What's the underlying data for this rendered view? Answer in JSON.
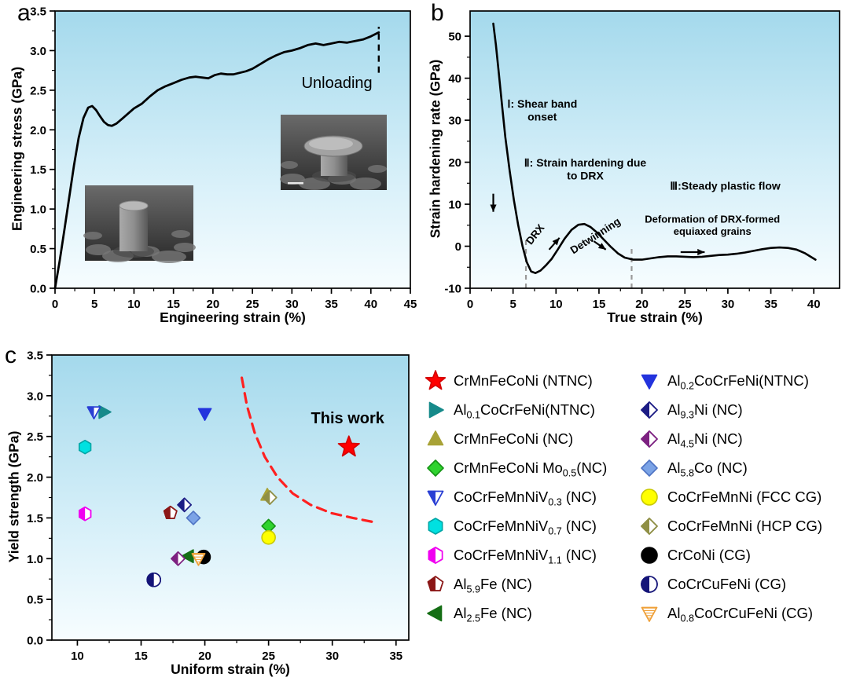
{
  "figure": {
    "panels": {
      "a": "a",
      "b": "b",
      "c": "c"
    }
  },
  "colors": {
    "plot_bg_top": "#a4d9ec",
    "plot_bg_mid": "#d3eef8",
    "plot_bg_bottom": "#f7fdff",
    "curve": "#000000",
    "this_work_red": "#ff0000",
    "boundary_red": "#ff2020",
    "guide_gray": "#999999"
  },
  "chart_data": [
    {
      "panel": "a",
      "type": "line",
      "xlabel": "Engineering strain (%)",
      "ylabel": "Engineering stress (GPa)",
      "xlim": [
        0,
        45
      ],
      "ylim": [
        0,
        3.5
      ],
      "xticks": [
        0,
        5,
        10,
        15,
        20,
        25,
        30,
        35,
        40,
        45
      ],
      "yticks": [
        0,
        0.5,
        1,
        1.5,
        2,
        2.5,
        3,
        3.5
      ],
      "ytick_decimals": 1,
      "series": [
        {
          "name": "engineering-stress-strain-curve",
          "color": "#000000",
          "width": 2.8,
          "x": [
            0,
            0.6,
            1.2,
            1.8,
            2.4,
            3.0,
            3.6,
            4.2,
            4.7,
            5.2,
            5.7,
            6.2,
            6.7,
            7.2,
            7.8,
            8.5,
            9.2,
            10,
            11,
            12,
            13,
            14,
            15,
            16,
            17,
            17.8,
            18.6,
            19.4,
            20.2,
            21,
            21.8,
            22.6,
            23.4,
            24.2,
            25,
            26,
            27,
            28,
            29,
            30,
            31,
            32,
            33,
            34,
            35,
            36,
            37,
            38,
            39,
            40,
            41
          ],
          "y": [
            0,
            0.35,
            0.75,
            1.15,
            1.55,
            1.9,
            2.15,
            2.28,
            2.3,
            2.25,
            2.17,
            2.1,
            2.06,
            2.05,
            2.08,
            2.14,
            2.2,
            2.27,
            2.33,
            2.42,
            2.5,
            2.55,
            2.59,
            2.63,
            2.66,
            2.67,
            2.66,
            2.65,
            2.69,
            2.71,
            2.7,
            2.7,
            2.72,
            2.74,
            2.77,
            2.83,
            2.89,
            2.94,
            2.98,
            3.0,
            3.03,
            3.07,
            3.09,
            3.07,
            3.09,
            3.11,
            3.1,
            3.12,
            3.14,
            3.18,
            3.23
          ]
        }
      ],
      "vlines": [
        {
          "name": "unloading-dashed-line",
          "x": 41,
          "y1": 2.72,
          "y2": 3.3,
          "color": "#000000",
          "dash": "8,6",
          "width": 2.4
        }
      ],
      "annotations": [
        {
          "text": "Unloading",
          "x": 35.7,
          "y": 2.53,
          "size": 20,
          "weight": 500,
          "color": "#000000"
        }
      ],
      "insets": [
        {
          "name": "sem-undeformed-micropillar"
        },
        {
          "name": "sem-deformed-micropillar"
        }
      ]
    },
    {
      "panel": "b",
      "type": "line",
      "xlabel": "True strain (%)",
      "ylabel": "Strain hardening rate (GPa)",
      "xlim": [
        0,
        43
      ],
      "ylim": [
        -10,
        56
      ],
      "xticks": [
        0,
        5,
        10,
        15,
        20,
        25,
        30,
        35,
        40
      ],
      "yticks": [
        -10,
        0,
        10,
        20,
        30,
        40,
        50
      ],
      "ytick_decimals": 0,
      "series": [
        {
          "name": "strain-hardening-rate-curve",
          "color": "#000000",
          "width": 2.6,
          "x": [
            2.7,
            3.0,
            3.3,
            3.7,
            4.1,
            4.6,
            5.1,
            5.6,
            6.1,
            6.6,
            7.1,
            7.6,
            8.2,
            8.8,
            9.5,
            10.2,
            11,
            11.8,
            12.6,
            13.3,
            14,
            14.8,
            15.6,
            16.4,
            17.2,
            18,
            19,
            20,
            21,
            22,
            23,
            24,
            25,
            26,
            27,
            28,
            29,
            30,
            31,
            32,
            33,
            34,
            35,
            36,
            37,
            38,
            39,
            40.2
          ],
          "y": [
            53,
            48,
            42,
            34,
            26,
            18,
            11,
            5,
            0,
            -3.8,
            -6,
            -6.4,
            -5.8,
            -4.6,
            -3,
            -0.8,
            1.8,
            3.9,
            5.1,
            5.3,
            4.6,
            3.2,
            1.5,
            -0.2,
            -1.7,
            -2.7,
            -3.2,
            -3.2,
            -2.9,
            -2.6,
            -2.4,
            -2.4,
            -2.5,
            -2.6,
            -2.5,
            -2.3,
            -2.1,
            -2.0,
            -1.8,
            -1.5,
            -1.1,
            -0.7,
            -0.4,
            -0.3,
            -0.4,
            -0.8,
            -1.7,
            -3.2
          ]
        }
      ],
      "vlines": [
        {
          "name": "stage-boundary-line-1",
          "x": 6.5,
          "y1": -10,
          "y2": 2.0,
          "color": "#999999",
          "dash": "6,5",
          "width": 2.2
        },
        {
          "name": "stage-boundary-line-2",
          "x": 18.8,
          "y1": -10,
          "y2": -0.5,
          "color": "#999999",
          "dash": "6,5",
          "width": 2.2
        }
      ],
      "annotations": [
        {
          "text": "Ⅰ: Shear band\nonset",
          "x": 8.4,
          "y": 33,
          "size": 14,
          "weight": 700
        },
        {
          "text": "Ⅱ: Strain hardening due\nto DRX",
          "x": 13.4,
          "y": 19,
          "size": 14,
          "weight": 700
        },
        {
          "text": "Ⅲ:Steady plastic flow",
          "x": 29.7,
          "y": 13.5,
          "size": 14,
          "weight": 700
        },
        {
          "text": "DRX",
          "x": 7.9,
          "y": 2.3,
          "size": 13.5,
          "weight": 700,
          "rotate": -52
        },
        {
          "text": "Detwinning",
          "x": 14.8,
          "y": 1.8,
          "size": 13.5,
          "weight": 700,
          "rotate": -33
        },
        {
          "text": "Deformation of DRX-formed\nequiaxed grains",
          "x": 28.2,
          "y": 5.6,
          "size": 13,
          "weight": 700
        }
      ],
      "arrows": [
        {
          "x1": 2.7,
          "y1": 12.5,
          "x2": 2.7,
          "y2": 8.2
        },
        {
          "x1": 9.2,
          "y1": -0.8,
          "x2": 10.4,
          "y2": 2.0
        },
        {
          "x1": 14.4,
          "y1": 1.2,
          "x2": 15.8,
          "y2": -0.8
        },
        {
          "x1": 24.5,
          "y1": -1.4,
          "x2": 27.3,
          "y2": -1.4
        }
      ]
    },
    {
      "panel": "c",
      "type": "scatter",
      "xlabel": "Uniform strain (%)",
      "ylabel": "Yield strength (GPa)",
      "xlim": [
        8,
        36
      ],
      "ylim": [
        0,
        3.5
      ],
      "xticks": [
        10,
        15,
        20,
        25,
        30,
        35
      ],
      "yticks": [
        0,
        0.5,
        1,
        1.5,
        2,
        2.5,
        3,
        3.5
      ],
      "ytick_decimals": 1,
      "boundary": {
        "color": "#ff2020",
        "dash": "12,8",
        "width": 3.2,
        "x": [
          22.9,
          23.3,
          23.9,
          24.7,
          25.7,
          26.9,
          28.3,
          29.9,
          31.6,
          33.2
        ],
        "y": [
          3.22,
          2.88,
          2.55,
          2.25,
          2.0,
          1.8,
          1.66,
          1.56,
          1.5,
          1.45
        ]
      },
      "annotations": [
        {
          "text": "This work",
          "x": 31.2,
          "y": 2.66,
          "size": 20,
          "weight": 700,
          "color": "#ff0000"
        }
      ],
      "series": [
        {
          "label": "CrMnFeCoNi (NTNC)",
          "marker": "star",
          "fill": "solid",
          "color": "#ff0000",
          "stroke": "#d40000",
          "x": 31.3,
          "y": 2.37,
          "column": 1
        },
        {
          "label": "Al_{0.1}CoCrFeNi(NTNC)",
          "marker": "tri-right",
          "fill": "solid",
          "color": "#168a8a",
          "x": 12.1,
          "y": 2.8,
          "column": 1
        },
        {
          "label": "CrMnFeCoNi (NC)",
          "marker": "tri-up",
          "fill": "solid",
          "color": "#a8a236",
          "x": 24.9,
          "y": 1.78,
          "column": 1
        },
        {
          "label": "CrMnFeCoNi Mo_{0.5}(NC)",
          "marker": "diamond",
          "fill": "solid",
          "color": "#2fd32f",
          "stroke": "#169416",
          "x": 25,
          "y": 1.4,
          "column": 1
        },
        {
          "label": "CoCrFeMnNiV_{0.3} (NC)",
          "marker": "tri-down",
          "fill": "half",
          "color": "#2a3fd4",
          "x": 11.3,
          "y": 2.8,
          "column": 1
        },
        {
          "label": "CoCrFeMnNiV_{0.7} (NC)",
          "marker": "hexagon",
          "fill": "solid",
          "color": "#00e1e1",
          "stroke": "#00a5a5",
          "x": 10.6,
          "y": 2.37,
          "column": 1
        },
        {
          "label": "CoCrFeMnNiV_{1.1} (NC)",
          "marker": "hexagon",
          "fill": "half",
          "color": "#f000f0",
          "x": 10.6,
          "y": 1.55,
          "column": 1
        },
        {
          "label": "Al_{5.9}Fe (NC)",
          "marker": "pentagon",
          "fill": "half",
          "color": "#8b1717",
          "x": 17.3,
          "y": 1.56,
          "column": 1
        },
        {
          "label": "Al_{2.5}Fe (NC)",
          "marker": "tri-left",
          "fill": "solid",
          "color": "#156e15",
          "x": 18.7,
          "y": 1.03,
          "column": 1
        },
        {
          "label": "Al_{0.2}CoCrFeNi(NTNC)",
          "marker": "tri-down",
          "fill": "solid",
          "color": "#2333dd",
          "x": 20,
          "y": 2.78,
          "column": 2
        },
        {
          "label": "Al_{9.3}Ni (NC)",
          "marker": "diamond",
          "fill": "half",
          "color": "#1c1c85",
          "x": 18.4,
          "y": 1.66,
          "column": 2
        },
        {
          "label": "Al_{4.5}Ni (NC)",
          "marker": "diamond",
          "fill": "half",
          "color": "#7d2181",
          "x": 17.9,
          "y": 1.0,
          "column": 2
        },
        {
          "label": "Al_{5.8}Co (NC)",
          "marker": "diamond",
          "fill": "solid",
          "color": "#7ba3e6",
          "stroke": "#4f74c4",
          "x": 19.1,
          "y": 1.5,
          "column": 2
        },
        {
          "label": "CoCrFeMnNi (FCC CG)",
          "marker": "circle",
          "fill": "solid",
          "color": "#ffff00",
          "stroke": "#c9c900",
          "x": 25,
          "y": 1.26,
          "column": 2
        },
        {
          "label": "CoCrFeMnNi (HCP CG)",
          "marker": "diamond",
          "fill": "half",
          "color": "#8f8f45",
          "x": 25.1,
          "y": 1.75,
          "column": 2
        },
        {
          "label": "CrCoNi (CG)",
          "marker": "circle",
          "fill": "solid",
          "color": "#000000",
          "x": 19.9,
          "y": 1.02,
          "column": 2
        },
        {
          "label": "CoCrCuFeNi (CG)",
          "marker": "circle",
          "fill": "half",
          "color": "#141478",
          "x": 16,
          "y": 0.74,
          "column": 2
        },
        {
          "label": "Al_{0.8}CoCrCuFeNi (CG)",
          "marker": "tri-down",
          "fill": "hatch",
          "color": "#efa13a",
          "x": 19.5,
          "y": 1.0,
          "column": 2
        }
      ]
    }
  ]
}
